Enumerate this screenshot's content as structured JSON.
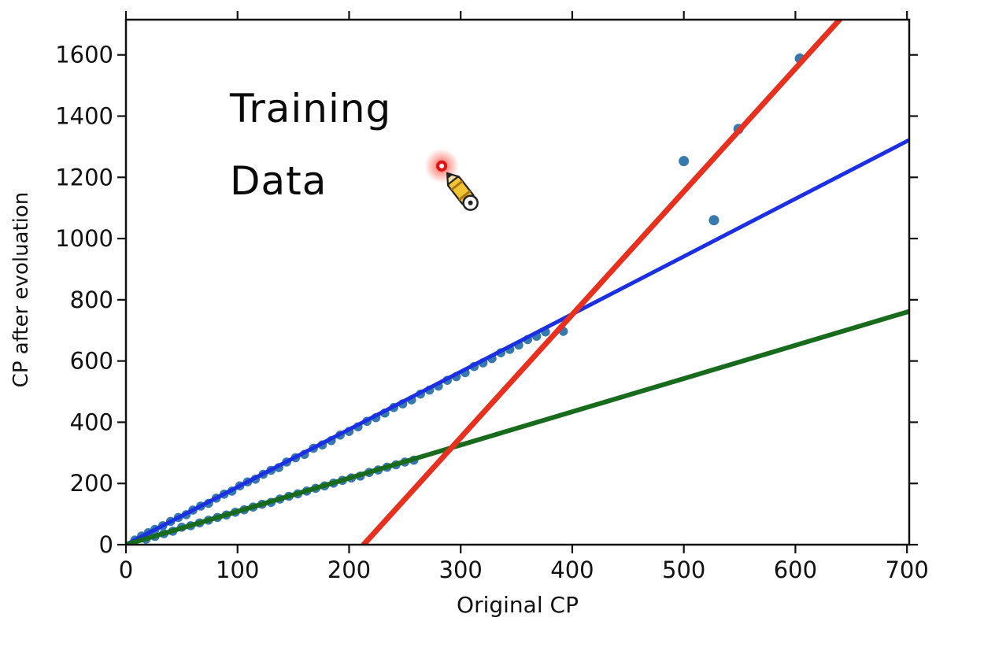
{
  "figure": {
    "annotation": "Training\nData",
    "xlabel": "Original CP",
    "ylabel": "CP after evoluation",
    "background": "#ffffff"
  },
  "chart_data": {
    "type": "scatter",
    "title": "Training Data",
    "xlabel": "Original CP",
    "ylabel": "CP after evoluation",
    "xlim": [
      0,
      702
    ],
    "ylim": [
      0,
      1715
    ],
    "xticks": [
      0,
      100,
      200,
      300,
      400,
      500,
      600,
      700
    ],
    "yticks": [
      0,
      200,
      400,
      600,
      800,
      1000,
      1200,
      1400,
      1600
    ],
    "grid": false,
    "legend": "none",
    "colors": {
      "points": "#3779ad",
      "blue_line": "#1b2fe3",
      "green_line": "#186a1d",
      "red_line": "#e8301f",
      "frame": "#111111",
      "glow": "#ff2a16"
    },
    "series": [
      {
        "name": "upper-cluster-points",
        "kind": "scatter",
        "points": [
          [
            8,
            15
          ],
          [
            14,
            28
          ],
          [
            20,
            39
          ],
          [
            26,
            50
          ],
          [
            33,
            62
          ],
          [
            40,
            76
          ],
          [
            47,
            89
          ],
          [
            54,
            98
          ],
          [
            60,
            113
          ],
          [
            67,
            126
          ],
          [
            74,
            135
          ],
          [
            81,
            152
          ],
          [
            88,
            165
          ],
          [
            95,
            175
          ],
          [
            102,
            192
          ],
          [
            109,
            205
          ],
          [
            116,
            214
          ],
          [
            123,
            230
          ],
          [
            130,
            243
          ],
          [
            137,
            252
          ],
          [
            144,
            270
          ],
          [
            152,
            284
          ],
          [
            160,
            295
          ],
          [
            168,
            315
          ],
          [
            176,
            326
          ],
          [
            184,
            340
          ],
          [
            192,
            358
          ],
          [
            200,
            370
          ],
          [
            208,
            385
          ],
          [
            216,
            403
          ],
          [
            224,
            415
          ],
          [
            232,
            430
          ],
          [
            240,
            448
          ],
          [
            248,
            460
          ],
          [
            256,
            473
          ],
          [
            264,
            492
          ],
          [
            272,
            505
          ],
          [
            280,
            518
          ],
          [
            288,
            537
          ],
          [
            296,
            549
          ],
          [
            304,
            562
          ],
          [
            312,
            582
          ],
          [
            320,
            594
          ],
          [
            328,
            608
          ],
          [
            336,
            627
          ],
          [
            344,
            638
          ],
          [
            352,
            652
          ],
          [
            360,
            670
          ],
          [
            368,
            681
          ],
          [
            376,
            695
          ],
          [
            392,
            697
          ]
        ]
      },
      {
        "name": "lower-cluster-points",
        "kind": "scatter",
        "points": [
          [
            18,
            18
          ],
          [
            26,
            27
          ],
          [
            34,
            36
          ],
          [
            42,
            44
          ],
          [
            50,
            57
          ],
          [
            58,
            62
          ],
          [
            66,
            71
          ],
          [
            74,
            80
          ],
          [
            82,
            89
          ],
          [
            90,
            97
          ],
          [
            98,
            106
          ],
          [
            106,
            114
          ],
          [
            114,
            123
          ],
          [
            122,
            132
          ],
          [
            130,
            138
          ],
          [
            138,
            149
          ],
          [
            146,
            158
          ],
          [
            154,
            166
          ],
          [
            162,
            175
          ],
          [
            170,
            184
          ],
          [
            178,
            192
          ],
          [
            186,
            201
          ],
          [
            194,
            210
          ],
          [
            202,
            218
          ],
          [
            210,
            224
          ],
          [
            218,
            236
          ],
          [
            226,
            244
          ],
          [
            234,
            253
          ],
          [
            242,
            261
          ],
          [
            250,
            270
          ],
          [
            258,
            276
          ]
        ]
      },
      {
        "name": "outlier-points",
        "kind": "scatter",
        "points": [
          [
            500,
            1253
          ],
          [
            527,
            1060
          ],
          [
            549,
            1358
          ],
          [
            604,
            1588
          ]
        ]
      },
      {
        "name": "blue-regression-line",
        "kind": "line",
        "color_key": "blue_line",
        "from": [
          0,
          0
        ],
        "to": [
          702,
          1322
        ],
        "width": 5
      },
      {
        "name": "green-regression-line",
        "kind": "line",
        "color_key": "green_line",
        "from": [
          0,
          0
        ],
        "to": [
          702,
          762
        ],
        "width": 6
      },
      {
        "name": "red-regression-line",
        "kind": "line",
        "color_key": "red_line",
        "from": [
          213,
          0
        ],
        "to": [
          660,
          1797
        ],
        "width": 7
      }
    ],
    "cursor": {
      "icon": "pencil-cursor-icon",
      "x": 283,
      "y": 1237
    }
  }
}
